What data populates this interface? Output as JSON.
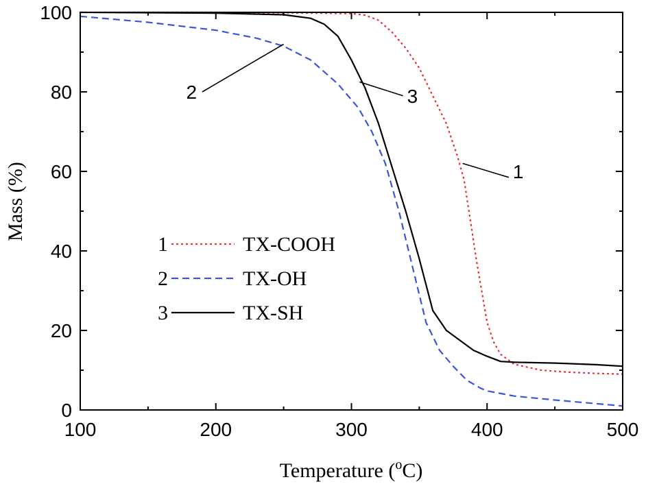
{
  "chart_data": {
    "type": "line",
    "xlabel": "Temperature (",
    "xlabel_unit": "o",
    "xlabel_suffix": "C)",
    "ylabel": "Mass (%)",
    "xlim": [
      100,
      500
    ],
    "ylim": [
      0,
      100
    ],
    "x_ticks": [
      "100",
      "200",
      "300",
      "400",
      "500"
    ],
    "y_ticks": [
      "0",
      "20",
      "40",
      "60",
      "80",
      "100"
    ],
    "grid": false,
    "legend_position": "center-left",
    "series": [
      {
        "name": "TX-COOH",
        "number": "1",
        "color": "#e8323c",
        "dash": "dotted",
        "points": [
          [
            100,
            100
          ],
          [
            200,
            100
          ],
          [
            280,
            99.8
          ],
          [
            300,
            99.7
          ],
          [
            310,
            99.3
          ],
          [
            320,
            98
          ],
          [
            330,
            95
          ],
          [
            340,
            91
          ],
          [
            350,
            86
          ],
          [
            360,
            79
          ],
          [
            370,
            72
          ],
          [
            378,
            64
          ],
          [
            383,
            58
          ],
          [
            388,
            47
          ],
          [
            392,
            38
          ],
          [
            396,
            30
          ],
          [
            400,
            22
          ],
          [
            405,
            17
          ],
          [
            410,
            14
          ],
          [
            420,
            11.5
          ],
          [
            440,
            10
          ],
          [
            460,
            9.5
          ],
          [
            480,
            9.2
          ],
          [
            500,
            9
          ]
        ]
      },
      {
        "name": "TX-OH",
        "number": "2",
        "color": "#3a55d8",
        "dash": "dashed",
        "points": [
          [
            100,
            99
          ],
          [
            150,
            97.5
          ],
          [
            200,
            95.5
          ],
          [
            230,
            93.5
          ],
          [
            250,
            91.5
          ],
          [
            270,
            88
          ],
          [
            290,
            82
          ],
          [
            305,
            76
          ],
          [
            315,
            70
          ],
          [
            325,
            62
          ],
          [
            335,
            50
          ],
          [
            345,
            36
          ],
          [
            355,
            22
          ],
          [
            365,
            15
          ],
          [
            375,
            11
          ],
          [
            385,
            7.5
          ],
          [
            395,
            5.5
          ],
          [
            400,
            4.8
          ],
          [
            420,
            3.5
          ],
          [
            450,
            2.5
          ],
          [
            480,
            1.6
          ],
          [
            500,
            1
          ]
        ]
      },
      {
        "name": "TX-SH",
        "number": "3",
        "color": "#000000",
        "dash": "solid",
        "points": [
          [
            100,
            100
          ],
          [
            200,
            99.8
          ],
          [
            250,
            99.4
          ],
          [
            270,
            98.5
          ],
          [
            280,
            97
          ],
          [
            290,
            94
          ],
          [
            300,
            88
          ],
          [
            310,
            81
          ],
          [
            320,
            72
          ],
          [
            330,
            61
          ],
          [
            340,
            50
          ],
          [
            350,
            38
          ],
          [
            360,
            25
          ],
          [
            370,
            20
          ],
          [
            380,
            17.5
          ],
          [
            390,
            15
          ],
          [
            400,
            13.5
          ],
          [
            410,
            12.2
          ],
          [
            420,
            12
          ],
          [
            450,
            11.8
          ],
          [
            480,
            11.4
          ],
          [
            500,
            11
          ]
        ]
      }
    ],
    "annotations": [
      {
        "label": "1",
        "line_from": [
          382,
          62
        ],
        "line_to": [
          416,
          58.5
        ],
        "text_at": [
          419,
          60
        ]
      },
      {
        "label": "2",
        "line_from": [
          250,
          92
        ],
        "line_to": [
          190,
          80
        ],
        "text_at": [
          186,
          80
        ]
      },
      {
        "label": "3",
        "line_from": [
          306,
          82.5
        ],
        "line_to": [
          338,
          79
        ],
        "text_at": [
          341,
          79
        ]
      }
    ]
  }
}
